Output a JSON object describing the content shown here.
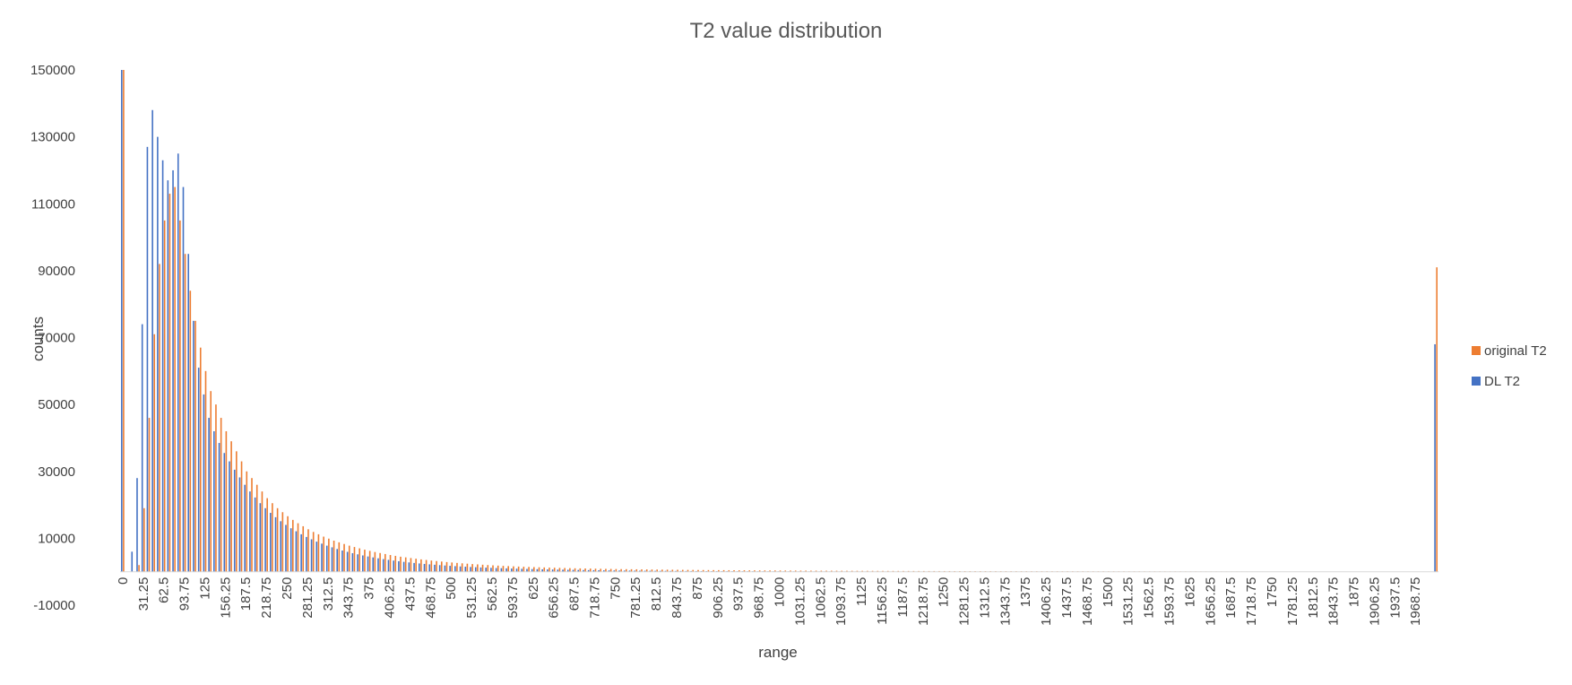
{
  "chart_data": {
    "type": "bar",
    "title": "T2 value distribution",
    "xlabel": "range",
    "ylabel": "counts",
    "ylim": [
      -10000,
      150000
    ],
    "y_ticks": [
      -10000,
      10000,
      30000,
      50000,
      70000,
      90000,
      110000,
      130000,
      150000
    ],
    "grid": false,
    "legend_position": "right",
    "bin_width": 7.8125,
    "x_ticks_shown": [
      "0",
      "31.25",
      "62.5",
      "93.75",
      "125",
      "156.25",
      "187.5",
      "218.75",
      "250",
      "281.25",
      "312.5",
      "343.75",
      "375",
      "406.25",
      "437.5",
      "468.75",
      "500",
      "531.25",
      "562.5",
      "593.75",
      "625",
      "656.25",
      "687.5",
      "718.75",
      "750",
      "781.25",
      "812.5",
      "843.75",
      "875",
      "906.25",
      "937.5",
      "968.75",
      "1000",
      "1031.25",
      "1062.5",
      "1093.75",
      "1125",
      "1156.25",
      "1187.5",
      "1218.75",
      "1250",
      "1281.25",
      "1312.5",
      "1343.75",
      "1375",
      "1406.25",
      "1437.5",
      "1468.75",
      "1500",
      "1531.25",
      "1562.5",
      "1593.75",
      "1625",
      "1656.25",
      "1687.5",
      "1718.75",
      "1750",
      "1781.25",
      "1812.5",
      "1843.75",
      "1875",
      "1906.25",
      "1937.5",
      "1968.75"
    ],
    "series": [
      {
        "name": "original T2",
        "color": "#ED7D31",
        "head_values": [
          150000,
          0,
          0,
          2000,
          19000,
          46000,
          71000,
          92000,
          105000,
          113000,
          115000,
          105000,
          95000,
          84000,
          75000,
          67000,
          60000,
          54000,
          50000,
          46000,
          42000,
          39000,
          36000,
          33000,
          30000,
          28000,
          26000,
          24000,
          22000,
          20500,
          19000,
          17800,
          16600,
          15500,
          14500,
          13600,
          12700,
          11900,
          11200,
          10500,
          9900,
          9300,
          8800,
          8300,
          7800,
          7400,
          7000,
          6600,
          6250,
          5900,
          5600,
          5300,
          5000,
          4750,
          4500,
          4300,
          4100,
          3900,
          3700,
          3520,
          3350,
          3200,
          3050,
          2900,
          2770,
          2640,
          2520,
          2410,
          2300,
          2200,
          2100,
          2010,
          1920,
          1840,
          1760,
          1690,
          1620,
          1560,
          1500,
          1440,
          1390,
          1340,
          1290,
          1240,
          1200,
          1160,
          1120,
          1080,
          1040,
          1010,
          980,
          950,
          920,
          890,
          860,
          840,
          810,
          790,
          770,
          750,
          730,
          710,
          690,
          670,
          650,
          630,
          615,
          600,
          585,
          570,
          555,
          540,
          525,
          510,
          500,
          490,
          480,
          470,
          460,
          450,
          440,
          430,
          420,
          410,
          400,
          392,
          384,
          376,
          368,
          360,
          352,
          345,
          338,
          331,
          324,
          317,
          310,
          304,
          298,
          292,
          286,
          280,
          274,
          268,
          263,
          258,
          253,
          248,
          243,
          238,
          233,
          229,
          225,
          221,
          217,
          213,
          209,
          205,
          201,
          197,
          194,
          191,
          188,
          185,
          182,
          179,
          176,
          173,
          170,
          167,
          164,
          161,
          158,
          156,
          154,
          152,
          150,
          148,
          146,
          144,
          142,
          140,
          138,
          136,
          134,
          132,
          130,
          128,
          126,
          124,
          122,
          120,
          118,
          116,
          114,
          112,
          110,
          108,
          106,
          104,
          102,
          100,
          98,
          96,
          94,
          92,
          90,
          88,
          86,
          84,
          82,
          80,
          78,
          76,
          74,
          72,
          70,
          68,
          66,
          64,
          62,
          60,
          58,
          56,
          54,
          52,
          50,
          48,
          46,
          44,
          42,
          40,
          38,
          36,
          34,
          32,
          30,
          28,
          26,
          24,
          22,
          20,
          18,
          16,
          14,
          12,
          10,
          8,
          6,
          5,
          4,
          3,
          2,
          1,
          1,
          1,
          1,
          1,
          1,
          1,
          1,
          1,
          1,
          1,
          1,
          1
        ],
        "last_value": 91000
      },
      {
        "name": "DL T2",
        "color": "#4472C4",
        "head_values": [
          150000,
          0,
          6000,
          28000,
          74000,
          127000,
          138000,
          130000,
          123000,
          117000,
          120000,
          125000,
          115000,
          95000,
          75000,
          61000,
          53000,
          46000,
          42000,
          38500,
          35500,
          33000,
          30500,
          28200,
          26000,
          24000,
          22200,
          20500,
          19000,
          17600,
          16300,
          15100,
          14000,
          13000,
          12100,
          11200,
          10400,
          9700,
          9000,
          8400,
          7800,
          7300,
          6800,
          6350,
          5950,
          5550,
          5200,
          4880,
          4570,
          4290,
          4020,
          3780,
          3550,
          3340,
          3140,
          2960,
          2790,
          2630,
          2480,
          2340,
          2210,
          2090,
          1980,
          1870,
          1770,
          1680,
          1590,
          1510,
          1430,
          1360,
          1290,
          1230,
          1170,
          1110,
          1060,
          1010,
          960,
          920,
          880,
          840,
          800,
          765,
          730,
          700,
          670,
          640,
          612,
          585,
          560,
          535,
          512,
          490,
          470,
          450,
          430,
          412,
          395,
          378,
          362,
          347,
          332,
          318,
          305,
          292,
          280,
          268,
          257,
          246,
          236,
          226,
          217,
          208,
          200,
          192,
          184,
          177,
          170,
          163,
          157,
          151,
          145,
          140,
          135,
          130,
          125,
          120,
          116,
          112,
          108,
          104,
          100,
          97,
          94,
          91,
          88,
          85,
          82,
          79,
          76,
          74,
          72,
          70,
          68,
          66,
          64,
          62,
          60,
          58,
          56,
          54,
          52,
          50,
          48,
          46,
          45,
          44,
          43,
          42,
          41,
          40,
          39,
          38,
          37,
          36,
          35,
          34,
          33,
          32,
          31,
          30,
          29,
          28,
          27,
          26,
          25,
          24,
          23,
          22,
          21,
          20,
          19,
          18,
          17,
          16,
          15,
          14,
          13,
          12,
          11,
          10,
          9,
          8,
          7,
          6,
          5,
          4,
          3,
          2,
          1,
          1,
          1,
          1,
          1,
          1,
          1,
          1,
          1,
          1,
          1,
          1,
          1,
          1,
          1,
          1,
          1,
          1,
          1,
          1,
          1,
          1,
          1,
          1,
          1,
          1,
          1,
          1,
          1,
          1,
          1,
          1,
          1,
          1,
          1,
          1,
          1,
          1,
          1,
          1,
          1,
          1,
          1,
          1,
          1,
          1,
          1,
          1,
          1,
          1,
          1,
          1,
          1,
          1,
          1,
          1,
          1,
          1,
          1,
          1,
          1,
          1,
          1
        ],
        "last_value": 68000
      }
    ]
  }
}
